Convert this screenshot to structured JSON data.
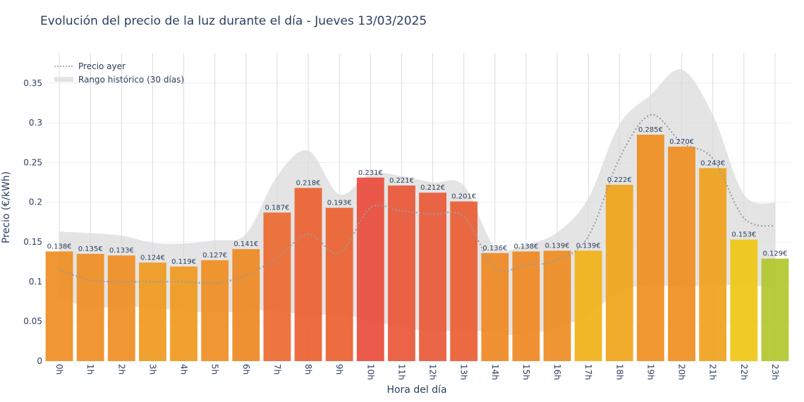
{
  "chart_data": {
    "type": "bar",
    "title": "Evolución del precio de la luz durante el día - Jueves 13/03/2025",
    "xlabel": "Hora del día",
    "ylabel": "Precio (€/kWh)",
    "ylim": [
      0,
      0.388
    ],
    "yticks": [
      0,
      0.05,
      0.1,
      0.15,
      0.2,
      0.25,
      0.3,
      0.35
    ],
    "ytick_labels": [
      "0",
      "0.05",
      "0.1",
      "0.15",
      "0.2",
      "0.25",
      "0.3",
      "0.35"
    ],
    "categories": [
      "0h",
      "1h",
      "2h",
      "3h",
      "4h",
      "5h",
      "6h",
      "7h",
      "8h",
      "9h",
      "10h",
      "11h",
      "12h",
      "13h",
      "14h",
      "15h",
      "16h",
      "17h",
      "18h",
      "19h",
      "20h",
      "21h",
      "22h",
      "23h"
    ],
    "grid": true,
    "legend_position": "top-left",
    "series": [
      {
        "type": "bar",
        "values": [
          0.138,
          0.135,
          0.133,
          0.124,
          0.119,
          0.127,
          0.141,
          0.187,
          0.218,
          0.193,
          0.231,
          0.221,
          0.212,
          0.201,
          0.136,
          0.138,
          0.139,
          0.139,
          0.222,
          0.285,
          0.27,
          0.243,
          0.153,
          0.129
        ],
        "labels": [
          "0.138€",
          "0.135€",
          "0.133€",
          "0.124€",
          "0.119€",
          "0.127€",
          "0.141€",
          "0.187€",
          "0.218€",
          "0.193€",
          "0.231€",
          "0.221€",
          "0.212€",
          "0.201€",
          "0.136€",
          "0.138€",
          "0.139€",
          "0.139€",
          "0.222€",
          "0.285€",
          "0.270€",
          "0.243€",
          "0.153€",
          "0.129€"
        ],
        "colors": [
          "#ef8e22",
          "#ef8e22",
          "#ef8e22",
          "#f09a1f",
          "#f09a1f",
          "#ef8e22",
          "#ee8a24",
          "#ec6b31",
          "#ec6232",
          "#ec6232",
          "#e94e3c",
          "#ea583a",
          "#ea5a38",
          "#eb5f35",
          "#ef8a24",
          "#ef8a24",
          "#ee8d23",
          "#f2b319",
          "#f0a51b",
          "#ef8f21",
          "#ef8f21",
          "#f0a21d",
          "#efc614",
          "#b1c72e"
        ]
      },
      {
        "name": "Precio ayer",
        "type": "line",
        "style": "dotted",
        "color": "#9a9a9a",
        "values": [
          0.115,
          0.102,
          0.1,
          0.1,
          0.1,
          0.098,
          0.108,
          0.13,
          0.16,
          0.136,
          0.193,
          0.189,
          0.185,
          0.182,
          0.117,
          0.121,
          0.127,
          0.157,
          0.255,
          0.31,
          0.275,
          0.255,
          0.18,
          0.17
        ]
      },
      {
        "name": "Rango histórico (30 días)",
        "type": "band",
        "color": "#d9d9d9",
        "upper": [
          0.163,
          0.161,
          0.158,
          0.149,
          0.148,
          0.152,
          0.16,
          0.233,
          0.265,
          0.21,
          0.236,
          0.233,
          0.225,
          0.221,
          0.144,
          0.147,
          0.162,
          0.205,
          0.298,
          0.335,
          0.367,
          0.31,
          0.21,
          0.199
        ],
        "lower": [
          0.08,
          0.067,
          0.069,
          0.067,
          0.063,
          0.061,
          0.063,
          0.064,
          0.057,
          0.06,
          0.05,
          0.044,
          0.036,
          0.04,
          0.035,
          0.033,
          0.043,
          0.058,
          0.088,
          0.095,
          0.094,
          0.095,
          0.096,
          0.093
        ]
      }
    ]
  }
}
